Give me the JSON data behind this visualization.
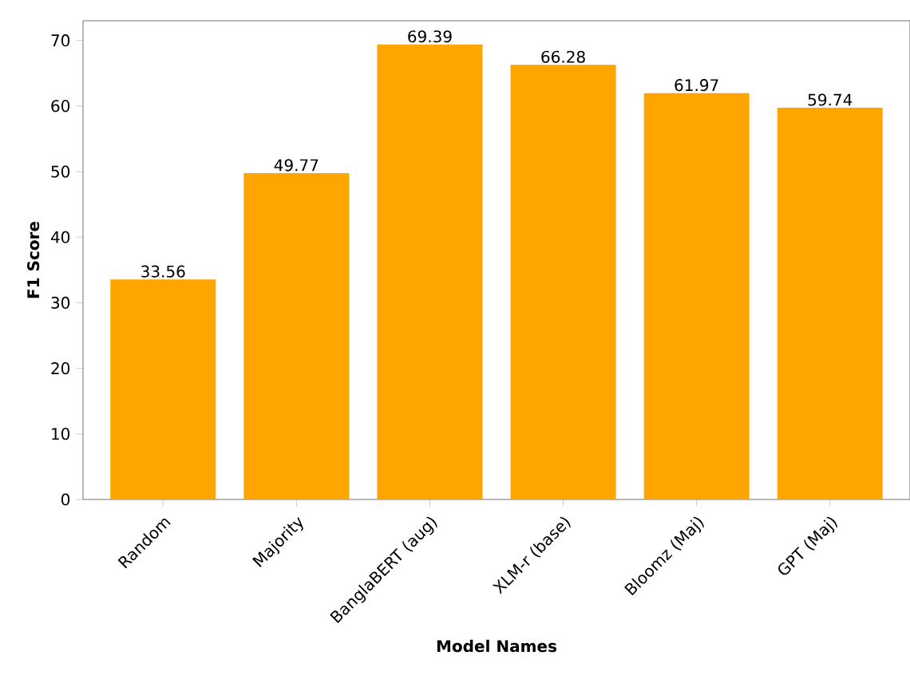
{
  "chart_data": {
    "type": "bar",
    "xlabel": "Model Names",
    "ylabel": "F1 Score",
    "categories": [
      "Random",
      "Majority",
      "BanglaBERT (aug)",
      "XLM-r (base)",
      "Bloomz (Maj)",
      "GPT (Maj)"
    ],
    "values": [
      33.56,
      49.77,
      69.39,
      66.28,
      61.97,
      59.74
    ],
    "color": "#ffa500",
    "ylim": [
      0,
      73
    ],
    "yticks": [
      0,
      10,
      20,
      30,
      40,
      50,
      60,
      70
    ],
    "data_labels": true
  }
}
